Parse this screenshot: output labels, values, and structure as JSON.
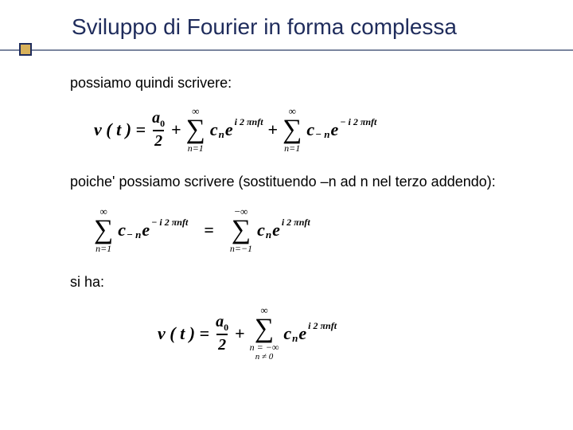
{
  "title": "Sviluppo di Fourier in forma complessa",
  "paragraphs": {
    "p1": "possiamo quindi scrivere:",
    "p2": "poiche' possiamo scrivere (sostituendo –n ad n nel terzo addendo):",
    "p3": "si ha:"
  },
  "equations": {
    "eq1": {
      "lhs": "v ( t )  =",
      "a0_num": "a",
      "a0_numsub": "0",
      "a0_den": "2",
      "sum1_top": "∞",
      "sum1_bot": "n=1",
      "c1_base": "c",
      "c1_sub": "n",
      "e": "e",
      "exp1": "i 2 πnft",
      "sum2_top": "∞",
      "sum2_bot": "n=1",
      "c2_base": "c",
      "c2_sub": "− n",
      "exp2": "− i 2 πnft"
    },
    "eq2": {
      "sumL_top": "∞",
      "sumL_bot": "n=1",
      "cL_base": "c",
      "cL_sub": "− n",
      "e": "e",
      "expL": "− i 2 πnft",
      "eqsym": "=",
      "sumR_top": "−∞",
      "sumR_bot": "n=−1",
      "cR_base": "c",
      "cR_sub": "n",
      "expR": "i 2 πnft"
    },
    "eq3": {
      "lhs": "v ( t )  =",
      "a0_num": "a",
      "a0_numsub": "0",
      "a0_den": "2",
      "sum_top": "∞",
      "sum_bot1": "n = −∞",
      "sum_bot2": "n ≠ 0",
      "c_base": "c",
      "c_sub": "n",
      "e": "e",
      "exp": "i 2 πnft"
    }
  },
  "style": {
    "title_color": "#1f2c5c",
    "accent_fill": "#d8b15a",
    "accent_border": "#1f2c5c",
    "line_color": "#7a859e",
    "text_color": "#000000",
    "bg": "#ffffff"
  }
}
